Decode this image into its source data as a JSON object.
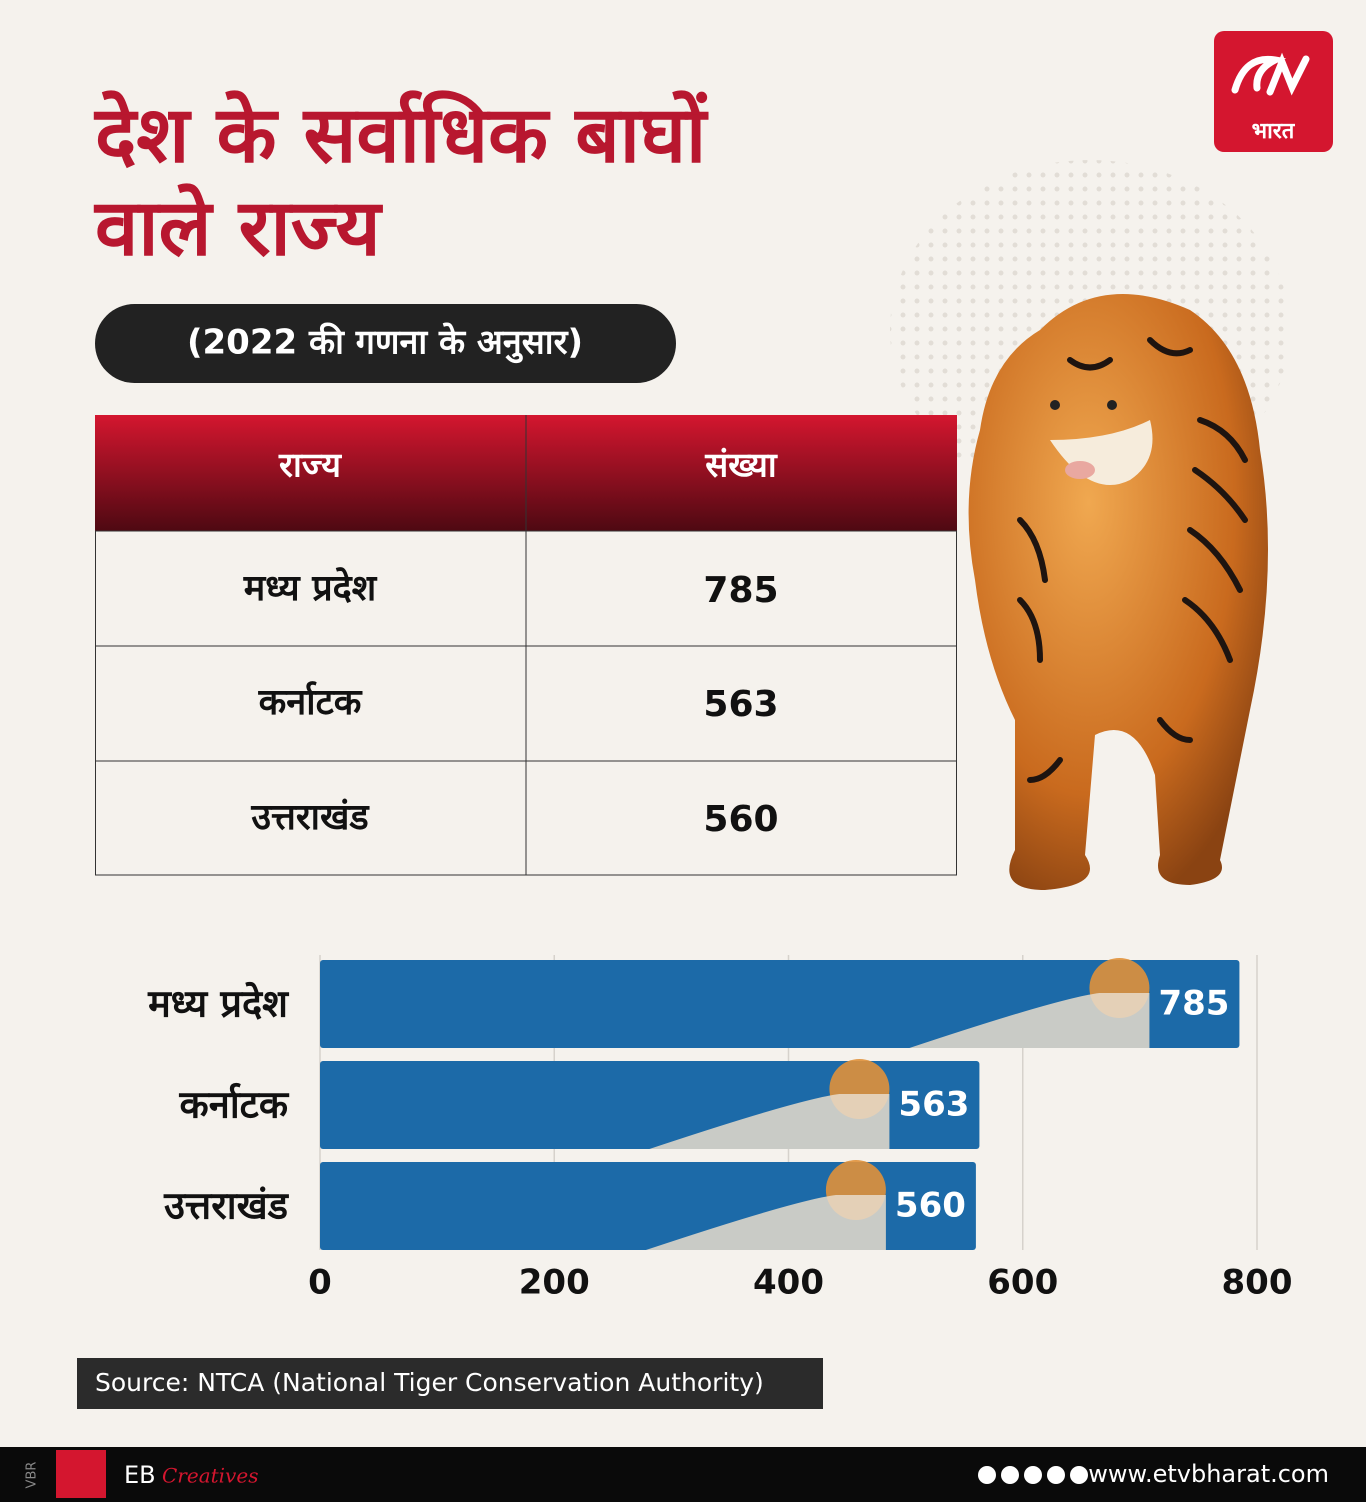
{
  "header": {
    "title_lines": [
      "देश के सर्वाधिक बाघों",
      "वाले राज्य"
    ],
    "subtitle": "(2022 की गणना के अनुसार)",
    "logo": "भारत"
  },
  "table": {
    "columns": [
      "राज्य",
      "संख्या"
    ],
    "rows": [
      [
        "मध्य प्रदेश",
        785
      ],
      [
        "कर्नाटक",
        563
      ],
      [
        "उत्तराखंड",
        560
      ]
    ]
  },
  "chart_data": {
    "type": "bar",
    "orientation": "horizontal",
    "categories": [
      "मध्य प्रदेश",
      "कर्नाटक",
      "उत्तराखंड"
    ],
    "values": [
      785,
      563,
      560
    ],
    "color": "#1c6aa8",
    "xlim": [
      0,
      800
    ],
    "xticks": [
      0,
      200,
      400,
      600,
      800
    ],
    "grid": true
  },
  "source": "Source: NTCA (National Tiger Conservation Authority)",
  "footer": {
    "side": "VBR",
    "brand": "EB",
    "brand_script": "Creatives",
    "website": "www.etvbharat.com"
  }
}
